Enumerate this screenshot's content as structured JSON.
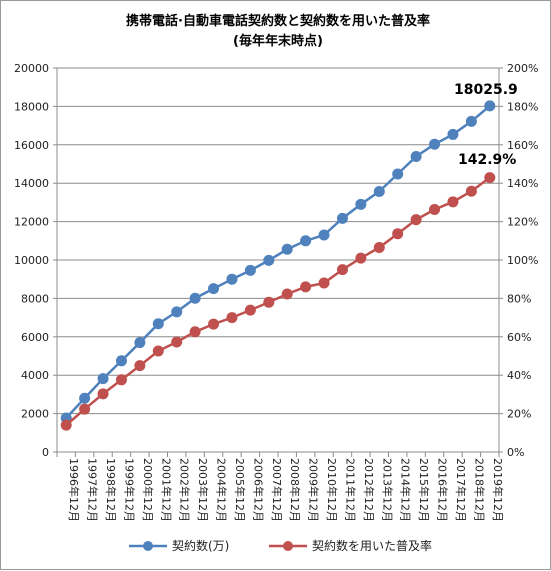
{
  "chart_data": {
    "type": "line",
    "title": "携帯電話·自動車電話契約数と契約数を用いた普及率",
    "subtitle": "(毎年年末時点)",
    "categories": [
      "1996年12月",
      "1997年12月",
      "1998年12月",
      "1999年12月",
      "2000年12月",
      "2001年12月",
      "2002年12月",
      "2003年12月",
      "2004年12月",
      "2005年12月",
      "2006年12月",
      "2007年12月",
      "2008年12月",
      "2009年12月",
      "2010年12月",
      "2011年12月",
      "2012年12月",
      "2013年12月",
      "2014年12月",
      "2015年12月",
      "2016年12月",
      "2017年12月",
      "2018年12月",
      "2019年12月"
    ],
    "y_left": {
      "lim": [
        0,
        20000
      ],
      "ticks": [
        "0",
        "2000",
        "4000",
        "6000",
        "8000",
        "10000",
        "12000",
        "14000",
        "16000",
        "18000",
        "20000"
      ]
    },
    "y_right": {
      "lim": [
        0,
        200
      ],
      "ticks": [
        "0%",
        "20%",
        "40%",
        "60%",
        "80%",
        "100%",
        "120%",
        "140%",
        "160%",
        "180%",
        "200%"
      ]
    },
    "series": [
      {
        "name": "契約数(万)",
        "axis": "left",
        "color": "#4f81bd",
        "values": [
          1770,
          2800,
          3820,
          4750,
          5700,
          6680,
          7300,
          8010,
          8510,
          9000,
          9460,
          9980,
          10560,
          11000,
          11300,
          12170,
          12900,
          13570,
          14480,
          15390,
          16030,
          16540,
          17220,
          18025.9
        ]
      },
      {
        "name": "契約数を用いた普及率",
        "axis": "right",
        "color": "#c0504d",
        "values": [
          14.0,
          22.3,
          30.3,
          37.6,
          45.0,
          52.6,
          57.3,
          62.6,
          66.6,
          70.0,
          73.9,
          78.0,
          82.3,
          86.0,
          88.0,
          95.0,
          101.0,
          106.5,
          113.7,
          121.0,
          126.3,
          130.3,
          135.8,
          142.9
        ]
      }
    ],
    "annotations": {
      "last_contracts": "18025.9",
      "last_rate": "142.9%"
    },
    "grid": true,
    "legend": "bottom"
  }
}
